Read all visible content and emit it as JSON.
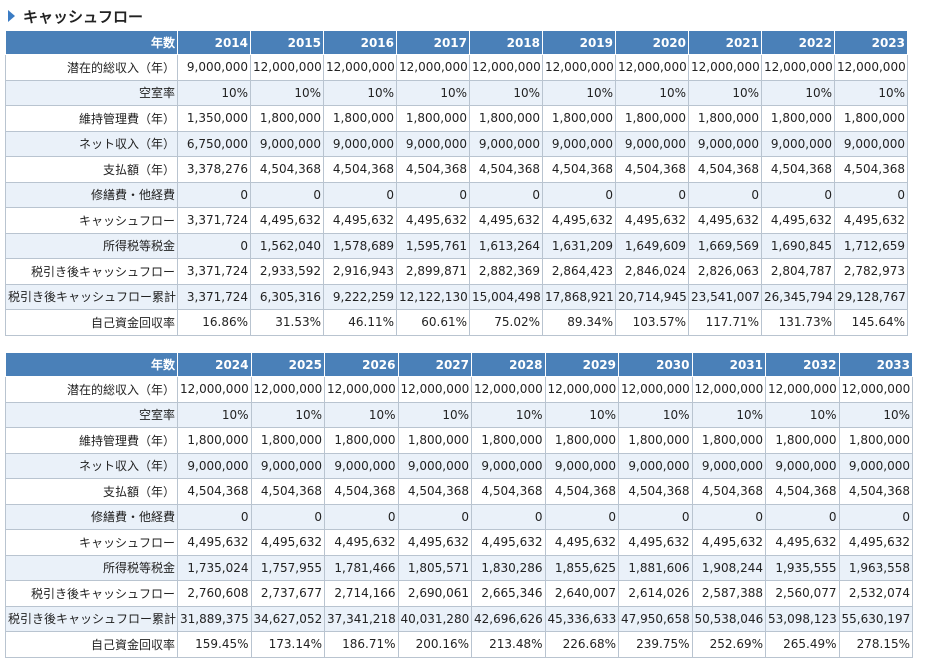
{
  "title": "キャッシュフロー",
  "tables": [
    {
      "header": [
        "年数",
        "2014",
        "2015",
        "2016",
        "2017",
        "2018",
        "2019",
        "2020",
        "2021",
        "2022",
        "2023"
      ],
      "rows": [
        [
          "潜在的総収入（年）",
          "9,000,000",
          "12,000,000",
          "12,000,000",
          "12,000,000",
          "12,000,000",
          "12,000,000",
          "12,000,000",
          "12,000,000",
          "12,000,000",
          "12,000,000"
        ],
        [
          "空室率",
          "10%",
          "10%",
          "10%",
          "10%",
          "10%",
          "10%",
          "10%",
          "10%",
          "10%",
          "10%"
        ],
        [
          "維持管理費（年）",
          "1,350,000",
          "1,800,000",
          "1,800,000",
          "1,800,000",
          "1,800,000",
          "1,800,000",
          "1,800,000",
          "1,800,000",
          "1,800,000",
          "1,800,000"
        ],
        [
          "ネット収入（年）",
          "6,750,000",
          "9,000,000",
          "9,000,000",
          "9,000,000",
          "9,000,000",
          "9,000,000",
          "9,000,000",
          "9,000,000",
          "9,000,000",
          "9,000,000"
        ],
        [
          "支払額（年）",
          "3,378,276",
          "4,504,368",
          "4,504,368",
          "4,504,368",
          "4,504,368",
          "4,504,368",
          "4,504,368",
          "4,504,368",
          "4,504,368",
          "4,504,368"
        ],
        [
          "修繕費・他経費",
          "0",
          "0",
          "0",
          "0",
          "0",
          "0",
          "0",
          "0",
          "0",
          "0"
        ],
        [
          "キャッシュフロー",
          "3,371,724",
          "4,495,632",
          "4,495,632",
          "4,495,632",
          "4,495,632",
          "4,495,632",
          "4,495,632",
          "4,495,632",
          "4,495,632",
          "4,495,632"
        ],
        [
          "所得税等税金",
          "0",
          "1,562,040",
          "1,578,689",
          "1,595,761",
          "1,613,264",
          "1,631,209",
          "1,649,609",
          "1,669,569",
          "1,690,845",
          "1,712,659"
        ],
        [
          "税引き後キャッシュフロー",
          "3,371,724",
          "2,933,592",
          "2,916,943",
          "2,899,871",
          "2,882,369",
          "2,864,423",
          "2,846,024",
          "2,826,063",
          "2,804,787",
          "2,782,973"
        ],
        [
          "税引き後キャッシュフロー累計",
          "3,371,724",
          "6,305,316",
          "9,222,259",
          "12,122,130",
          "15,004,498",
          "17,868,921",
          "20,714,945",
          "23,541,007",
          "26,345,794",
          "29,128,767"
        ],
        [
          "自己資金回収率",
          "16.86%",
          "31.53%",
          "46.11%",
          "60.61%",
          "75.02%",
          "89.34%",
          "103.57%",
          "117.71%",
          "131.73%",
          "145.64%"
        ]
      ]
    },
    {
      "header": [
        "年数",
        "2024",
        "2025",
        "2026",
        "2027",
        "2028",
        "2029",
        "2030",
        "2031",
        "2032",
        "2033"
      ],
      "rows": [
        [
          "潜在的総収入（年）",
          "12,000,000",
          "12,000,000",
          "12,000,000",
          "12,000,000",
          "12,000,000",
          "12,000,000",
          "12,000,000",
          "12,000,000",
          "12,000,000",
          "12,000,000"
        ],
        [
          "空室率",
          "10%",
          "10%",
          "10%",
          "10%",
          "10%",
          "10%",
          "10%",
          "10%",
          "10%",
          "10%"
        ],
        [
          "維持管理費（年）",
          "1,800,000",
          "1,800,000",
          "1,800,000",
          "1,800,000",
          "1,800,000",
          "1,800,000",
          "1,800,000",
          "1,800,000",
          "1,800,000",
          "1,800,000"
        ],
        [
          "ネット収入（年）",
          "9,000,000",
          "9,000,000",
          "9,000,000",
          "9,000,000",
          "9,000,000",
          "9,000,000",
          "9,000,000",
          "9,000,000",
          "9,000,000",
          "9,000,000"
        ],
        [
          "支払額（年）",
          "4,504,368",
          "4,504,368",
          "4,504,368",
          "4,504,368",
          "4,504,368",
          "4,504,368",
          "4,504,368",
          "4,504,368",
          "4,504,368",
          "4,504,368"
        ],
        [
          "修繕費・他経費",
          "0",
          "0",
          "0",
          "0",
          "0",
          "0",
          "0",
          "0",
          "0",
          "0"
        ],
        [
          "キャッシュフロー",
          "4,495,632",
          "4,495,632",
          "4,495,632",
          "4,495,632",
          "4,495,632",
          "4,495,632",
          "4,495,632",
          "4,495,632",
          "4,495,632",
          "4,495,632"
        ],
        [
          "所得税等税金",
          "1,735,024",
          "1,757,955",
          "1,781,466",
          "1,805,571",
          "1,830,286",
          "1,855,625",
          "1,881,606",
          "1,908,244",
          "1,935,555",
          "1,963,558"
        ],
        [
          "税引き後キャッシュフロー",
          "2,760,608",
          "2,737,677",
          "2,714,166",
          "2,690,061",
          "2,665,346",
          "2,640,007",
          "2,614,026",
          "2,587,388",
          "2,560,077",
          "2,532,074"
        ],
        [
          "税引き後キャッシュフロー累計",
          "31,889,375",
          "34,627,052",
          "37,341,218",
          "40,031,280",
          "42,696,626",
          "45,336,633",
          "47,950,658",
          "50,538,046",
          "53,098,123",
          "55,630,197"
        ],
        [
          "自己資金回収率",
          "159.45%",
          "173.14%",
          "186.71%",
          "200.16%",
          "213.48%",
          "226.68%",
          "239.75%",
          "252.69%",
          "265.49%",
          "278.15%"
        ]
      ]
    }
  ]
}
